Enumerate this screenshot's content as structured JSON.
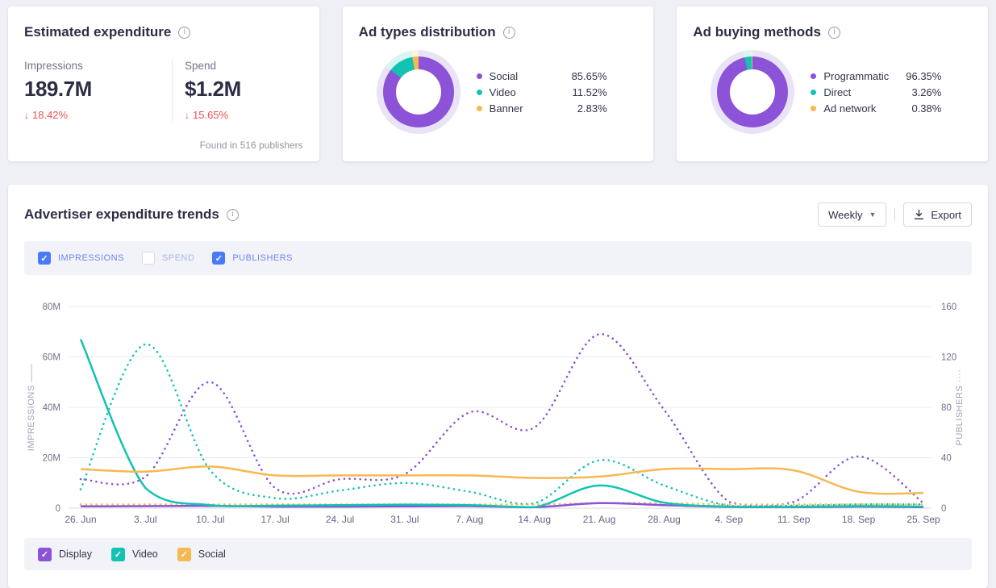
{
  "ui_colors": {
    "purple": "#8C52D7",
    "teal": "#12C2B2",
    "orange": "#F7B851",
    "purple_pale": "#EAE3F8",
    "teal_pale": "#D7F5F1",
    "orange_pale": "#FBF2DE",
    "checkbox_blue": "#4A7BF7",
    "negative_red": "#F05152",
    "checked_label_blue": "#6D86F0",
    "unchecked_label_blue": "#A9B5E6"
  },
  "cards": {
    "expenditure": {
      "title": "Estimated expenditure",
      "metrics": [
        {
          "label": "Impressions",
          "value": "189.7M",
          "change": "18.42%",
          "direction": "down"
        },
        {
          "label": "Spend",
          "value": "$1.2M",
          "change": "15.65%",
          "direction": "down"
        }
      ],
      "footnote": "Found in 516 publishers"
    },
    "ad_types": {
      "title": "Ad types distribution",
      "slices": [
        {
          "label": "Social",
          "pct": "85.65%",
          "value": 85.65,
          "color": "#8C52D7",
          "pale": "#EAE3F8"
        },
        {
          "label": "Video",
          "pct": "11.52%",
          "value": 11.52,
          "color": "#12C2B2",
          "pale": "#D7F5F1"
        },
        {
          "label": "Banner",
          "pct": "2.83%",
          "value": 2.83,
          "color": "#F7B851",
          "pale": "#FBF2DE"
        }
      ]
    },
    "buying_methods": {
      "title": "Ad buying methods",
      "slices": [
        {
          "label": "Programmatic",
          "pct": "96.35%",
          "value": 96.35,
          "color": "#8C52D7",
          "pale": "#EAE3F8"
        },
        {
          "label": "Direct",
          "pct": "3.26%",
          "value": 3.26,
          "color": "#12C2B2",
          "pale": "#D7F5F1"
        },
        {
          "label": "Ad network",
          "pct": "0.38%",
          "value": 0.38,
          "color": "#F7B851",
          "pale": "#FBF2DE"
        }
      ]
    }
  },
  "trends": {
    "title": "Advertiser expenditure trends",
    "period_selector": {
      "value": "Weekly"
    },
    "export_label": "Export",
    "metric_toggles": [
      {
        "label": "IMPRESSIONS",
        "checked": true
      },
      {
        "label": "SPEND",
        "checked": false
      },
      {
        "label": "PUBLISHERS",
        "checked": true
      }
    ],
    "type_toggles": [
      {
        "label": "Display",
        "checked": true,
        "color": "#8C52D7"
      },
      {
        "label": "Video",
        "checked": true,
        "color": "#12C2B2"
      },
      {
        "label": "Social",
        "checked": true,
        "color": "#F7B851"
      }
    ]
  },
  "chart_data": {
    "type": "line",
    "x": [
      "26. Jun",
      "3. Jul",
      "10. Jul",
      "17. Jul",
      "24. Jul",
      "31. Jul",
      "7. Aug",
      "14. Aug",
      "21. Aug",
      "28. Aug",
      "4. Sep",
      "11. Sep",
      "18. Sep",
      "25. Sep"
    ],
    "left_axis": {
      "title": "IMPRESSIONS",
      "marker": "——",
      "unit": "M",
      "ticks": [
        "0",
        "20M",
        "40M",
        "60M",
        "80M"
      ],
      "range": [
        0,
        80
      ],
      "grid": true
    },
    "right_axis": {
      "title": "PUBLISHERS",
      "marker": "····",
      "ticks": [
        "0",
        "40",
        "80",
        "120",
        "160"
      ],
      "range": [
        0,
        160
      ],
      "grid": false
    },
    "series": [
      {
        "name": "Display impressions",
        "axis": "left",
        "style": "solid",
        "color": "#8C52D7",
        "values": [
          0.7,
          0.8,
          0.9,
          0.6,
          0.6,
          0.7,
          0.8,
          0.4,
          2.0,
          1.2,
          0.5,
          0.4,
          0.6,
          0.4
        ]
      },
      {
        "name": "Video impressions",
        "axis": "left",
        "style": "solid",
        "color": "#12C2B2",
        "values": [
          67,
          8,
          1.2,
          1.0,
          1.2,
          1.4,
          1.2,
          0.4,
          9.0,
          2.2,
          0.6,
          0.5,
          0.8,
          0.6
        ]
      },
      {
        "name": "Social impressions",
        "axis": "left",
        "style": "solid",
        "color": "#F7B851",
        "values": [
          15.5,
          14.5,
          16.5,
          13.0,
          13.0,
          13.0,
          13.0,
          12.0,
          12.5,
          15.5,
          15.5,
          15.0,
          6.5,
          6.0
        ]
      },
      {
        "name": "Display publishers",
        "axis": "right",
        "style": "dotted",
        "color": "#8C52D7",
        "values": [
          23,
          25,
          100,
          16,
          23,
          27,
          76,
          64,
          138,
          78,
          5,
          5,
          41,
          4
        ]
      },
      {
        "name": "Video publishers",
        "axis": "right",
        "style": "dotted",
        "color": "#12C2B2",
        "values": [
          15,
          130,
          30,
          8,
          14,
          20,
          13,
          4,
          38,
          18,
          2,
          2,
          3,
          3
        ]
      },
      {
        "name": "Social publishers",
        "axis": "right",
        "style": "dotted",
        "color": "#F7B851",
        "values": [
          3,
          3,
          3,
          3,
          3,
          3,
          3,
          3,
          4,
          4,
          3,
          3,
          3,
          3
        ]
      }
    ]
  }
}
